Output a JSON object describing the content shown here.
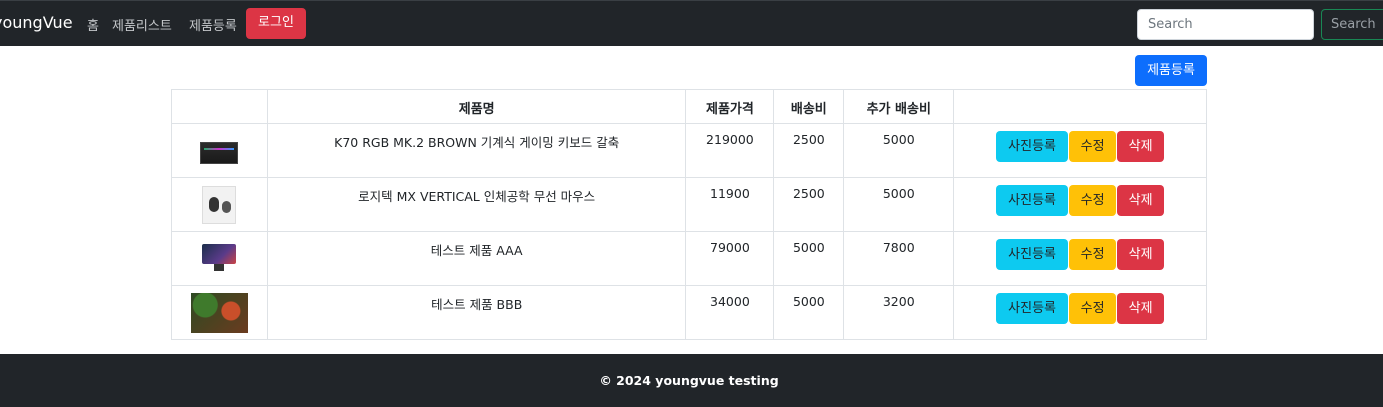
{
  "navbar": {
    "brand": "youngVue",
    "links": [
      "홈",
      "제품리스트",
      "제품등록"
    ],
    "login_label": "로그인",
    "search_placeholder": "Search",
    "search_button_label": "Search"
  },
  "register_button_label": "제품등록",
  "table": {
    "headers": [
      "",
      "제품명",
      "제품가격",
      "배송비",
      "추가 배송비",
      ""
    ],
    "rows": [
      {
        "image": "keyboard-photo",
        "name": "K70 RGB MK.2 BROWN 기계식 게이밍 키보드 갈축",
        "price": "219000",
        "shipping": "2500",
        "extra_shipping": "5000"
      },
      {
        "image": "mouse-photo",
        "name": "로지텍 MX VERTICAL 인체공학 무선 마우스",
        "price": "11900",
        "shipping": "2500",
        "extra_shipping": "5000"
      },
      {
        "image": "monitor-photo",
        "name": "테스트 제품 AAA",
        "price": "79000",
        "shipping": "5000",
        "extra_shipping": "7800"
      },
      {
        "image": "vegetables-photo",
        "name": "테스트 제품 BBB",
        "price": "34000",
        "shipping": "5000",
        "extra_shipping": "3200"
      }
    ],
    "actions": {
      "photo": "사진등록",
      "edit": "수정",
      "delete": "삭제"
    }
  },
  "footer": {
    "text": "© 2024 youngvue testing"
  },
  "colors": {
    "navbar_bg": "#212529",
    "primary": "#0d6efd",
    "info": "#0dcaf0",
    "warning": "#ffc107",
    "danger": "#dc3545",
    "success": "#198754"
  }
}
